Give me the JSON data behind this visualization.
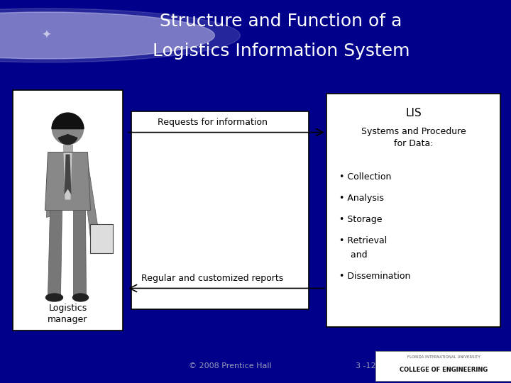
{
  "title_line1": "Structure and Function of a",
  "title_line2": "Logistics Information System",
  "title_bg_color": "#0000AA",
  "title_text_color": "#FFFFFF",
  "main_bg_color": "#E8E8E8",
  "slide_bg_color": "#00008B",
  "footer_text": "© 2008 Prentice Hall",
  "footer_page": "3 -12",
  "left_box_label_line1": "Logistics",
  "left_box_label_line2": "manager",
  "lis_box_title": "LIS",
  "lis_box_subtitle": "Systems and Procedure\nfor Data:",
  "lis_box_bullets": [
    "• Collection",
    "• Analysis",
    "• Storage",
    "• Retrieval",
    "    and",
    "• Dissemination"
  ],
  "arrow1_label": "Requests for information",
  "arrow2_label": "Regular and customized reports",
  "separator_color": "#C8B87A",
  "box_edge_color": "#000000",
  "box_fill_color": "#FFFFFF",
  "arrow_color": "#000000",
  "text_color": "#000000",
  "title_fontsize": 18,
  "label_fontsize": 9,
  "lis_title_fontsize": 10,
  "lis_body_fontsize": 9,
  "footer_fontsize": 8
}
